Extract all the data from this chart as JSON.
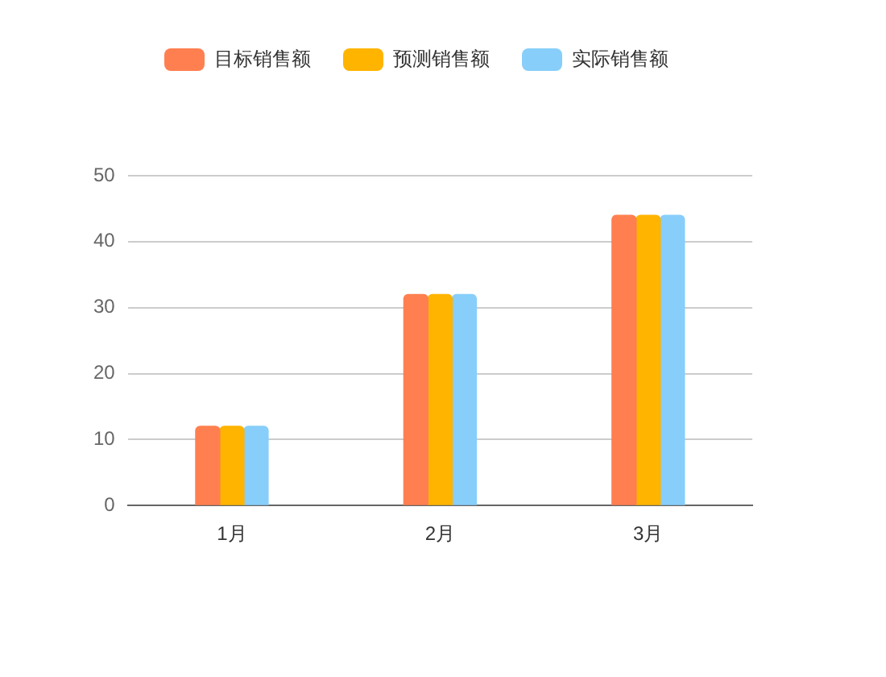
{
  "chart_data": {
    "type": "bar",
    "categories": [
      "1月",
      "2月",
      "3月"
    ],
    "series": [
      {
        "name": "目标销售额",
        "color": "#ff7f50",
        "values": [
          12,
          32,
          44
        ]
      },
      {
        "name": "预测销售额",
        "color": "#ffb400",
        "values": [
          12,
          32,
          44
        ]
      },
      {
        "name": "实际销售额",
        "color": "#87cefa",
        "values": [
          12,
          32,
          44
        ]
      }
    ],
    "ylim": [
      0,
      50
    ],
    "yticks": [
      0,
      10,
      20,
      30,
      40,
      50
    ],
    "grid": "y",
    "legend": "top"
  }
}
